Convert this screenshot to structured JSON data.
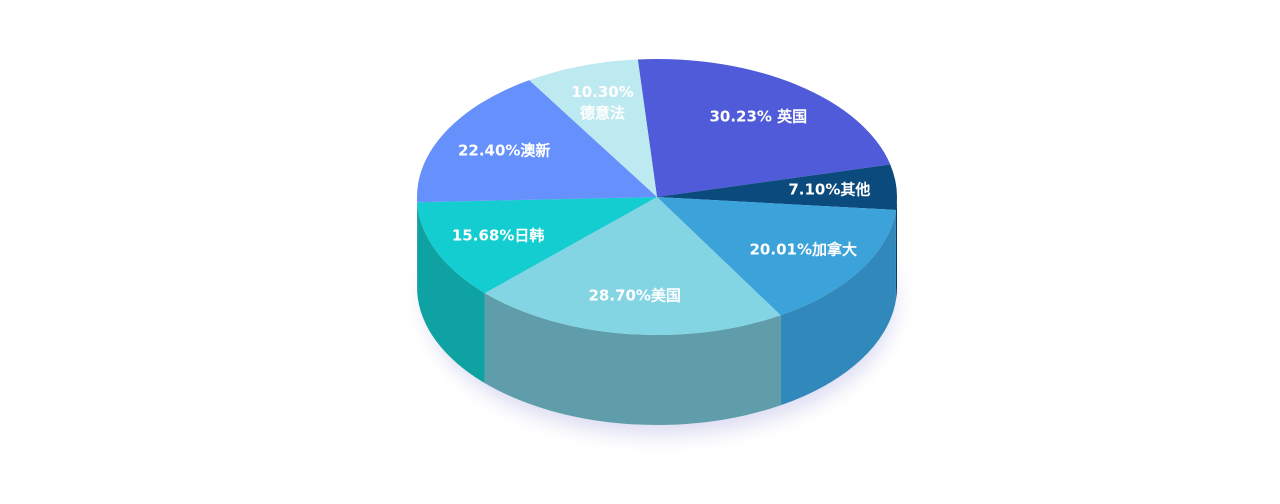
{
  "chart_data": {
    "type": "pie3d",
    "values": [
      30.23,
      7.1,
      20.01,
      28.7,
      15.68,
      22.4,
      10.3
    ],
    "value_labels": [
      "30.23% 英国",
      "7.10%其他",
      "20.01%加拿大",
      "28.70%美国",
      "15.68%日韩",
      "22.40%澳新",
      "10.30%\n德意法"
    ],
    "colors": [
      "#505bd9",
      "#0b4a7c",
      "#3ca2da",
      "#84d5e3",
      "#14cdd0",
      "#6690fb",
      "#bde9f0"
    ],
    "side_colors": [
      "#4452c2",
      "#073a63",
      "#3188ba",
      "#5f9daa",
      "#0fa2a2",
      "#5273d6",
      "#9cc7cf"
    ]
  }
}
